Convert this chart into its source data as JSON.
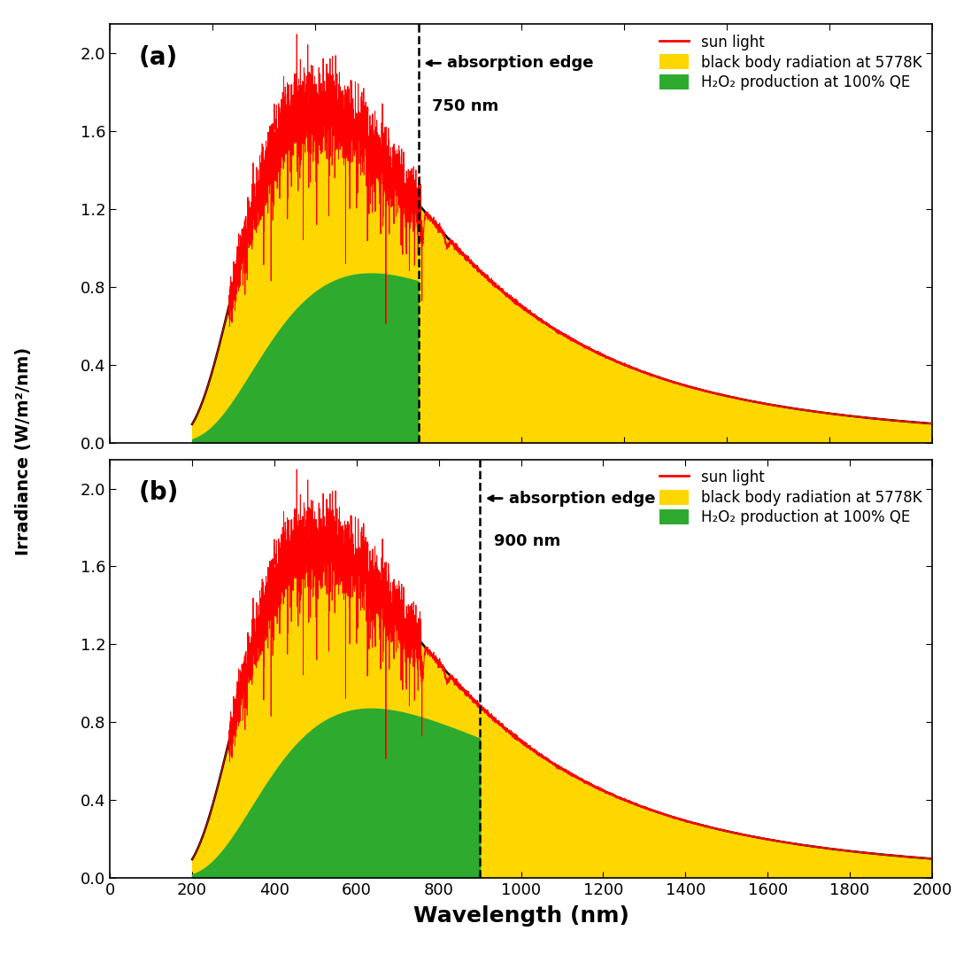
{
  "xlim": [
    0,
    2000
  ],
  "ylim": [
    0.0,
    2.15
  ],
  "yticks": [
    0.0,
    0.4,
    0.8,
    1.2,
    1.6,
    2.0
  ],
  "xticks": [
    0,
    200,
    400,
    600,
    800,
    1000,
    1200,
    1400,
    1600,
    1800,
    2000
  ],
  "xlabel": "Wavelength (nm)",
  "ylabel": "Irradiance (W/m²/nm)",
  "absorption_edge_a": 750,
  "absorption_edge_b": 900,
  "panel_a_label": "(a)",
  "panel_b_label": "(b)",
  "annotation_a_line1": "absorption edge",
  "annotation_a_line2": "750 nm",
  "annotation_b_line1": "absorption edge",
  "annotation_b_line2": "900 nm",
  "legend_sun": "sun light",
  "legend_bb": "black body radiation at 5778K",
  "legend_h2o2": "H₂O₂ production at 100% QE",
  "color_sun": "#FF0000",
  "color_bb": "#FFD700",
  "color_h2o2": "#2EAA2E",
  "color_bb_curve": "#000000",
  "T_bb": 5778,
  "figure_bg": "#FFFFFF",
  "bb_peak_scale": 1.72,
  "green_peak_a": 0.87,
  "green_peak_b": 0.87
}
